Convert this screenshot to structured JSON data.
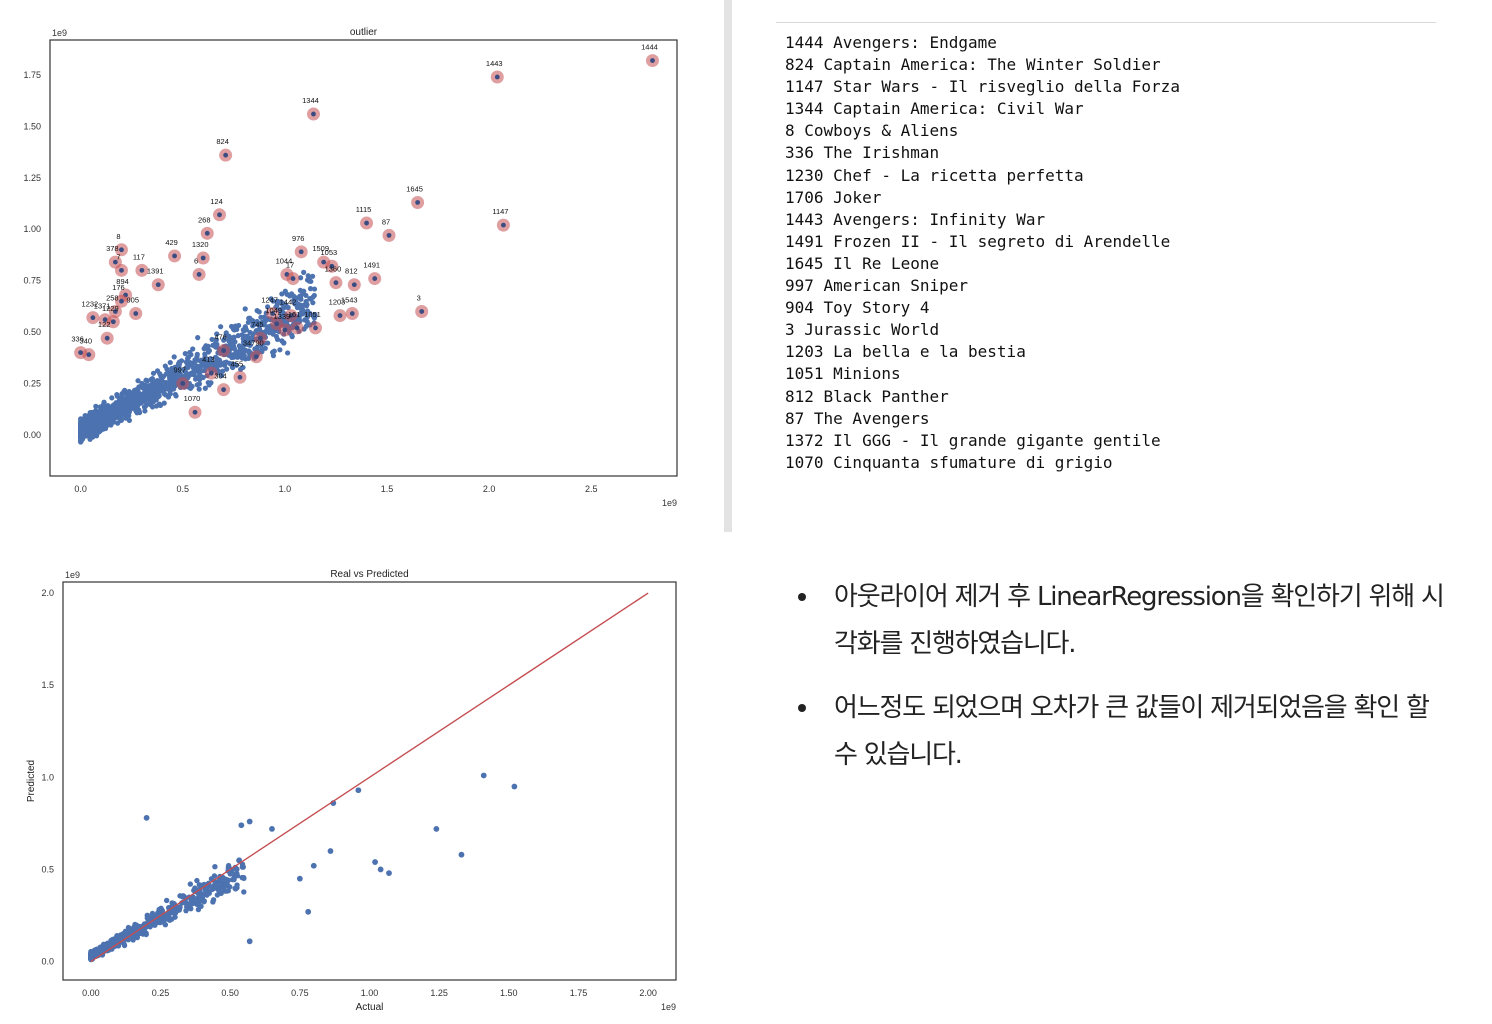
{
  "chart_data": [
    {
      "type": "scatter",
      "title": "outlier",
      "x_offset_label": "1e9",
      "y_offset_label": "1e9",
      "xlim": [
        -0.15,
        2.92
      ],
      "ylim": [
        -0.2,
        1.92
      ],
      "xticks": [
        "0.0",
        "0.5",
        "1.0",
        "1.5",
        "2.0",
        "2.5"
      ],
      "yticks": [
        "0.00",
        "0.25",
        "0.50",
        "0.75",
        "1.00",
        "1.25",
        "1.50",
        "1.75"
      ],
      "grid": false,
      "colors": {
        "point": "#4c72b0",
        "outlier": "#c44e52"
      },
      "outliers": [
        {
          "label": "1444",
          "x": 2.8,
          "y": 1.82
        },
        {
          "label": "1443",
          "x": 2.04,
          "y": 1.74
        },
        {
          "label": "1344",
          "x": 1.14,
          "y": 1.56
        },
        {
          "label": "824",
          "x": 0.71,
          "y": 1.36
        },
        {
          "label": "1645",
          "x": 1.65,
          "y": 1.13
        },
        {
          "label": "1147",
          "x": 2.07,
          "y": 1.02
        },
        {
          "label": "124",
          "x": 0.68,
          "y": 1.07
        },
        {
          "label": "1115",
          "x": 1.4,
          "y": 1.03
        },
        {
          "label": "87",
          "x": 1.51,
          "y": 0.97
        },
        {
          "label": "268",
          "x": 0.62,
          "y": 0.98
        },
        {
          "label": "8",
          "x": 0.2,
          "y": 0.9
        },
        {
          "label": "429",
          "x": 0.46,
          "y": 0.87
        },
        {
          "label": "1320",
          "x": 0.6,
          "y": 0.86
        },
        {
          "label": "976",
          "x": 1.08,
          "y": 0.89
        },
        {
          "label": "1509",
          "x": 1.19,
          "y": 0.84
        },
        {
          "label": "1053",
          "x": 1.23,
          "y": 0.82
        },
        {
          "label": "6",
          "x": 0.58,
          "y": 0.78
        },
        {
          "label": "378",
          "x": 0.17,
          "y": 0.84
        },
        {
          "label": "7",
          "x": 0.2,
          "y": 0.8
        },
        {
          "label": "117",
          "x": 0.3,
          "y": 0.8
        },
        {
          "label": "1391",
          "x": 0.38,
          "y": 0.73
        },
        {
          "label": "1491",
          "x": 1.44,
          "y": 0.76
        },
        {
          "label": "1360",
          "x": 1.25,
          "y": 0.74
        },
        {
          "label": "812",
          "x": 1.34,
          "y": 0.73
        },
        {
          "label": "1044",
          "x": 1.01,
          "y": 0.78
        },
        {
          "label": "17",
          "x": 1.04,
          "y": 0.76
        },
        {
          "label": "894",
          "x": 0.22,
          "y": 0.68
        },
        {
          "label": "176",
          "x": 0.2,
          "y": 0.65
        },
        {
          "label": "3",
          "x": 1.67,
          "y": 0.6
        },
        {
          "label": "1203",
          "x": 1.27,
          "y": 0.58
        },
        {
          "label": "1543",
          "x": 1.33,
          "y": 0.59
        },
        {
          "label": "258",
          "x": 0.17,
          "y": 0.6
        },
        {
          "label": "905",
          "x": 0.27,
          "y": 0.59
        },
        {
          "label": "1247",
          "x": 0.94,
          "y": 0.59
        },
        {
          "label": "1442",
          "x": 1.03,
          "y": 0.58
        },
        {
          "label": "1232",
          "x": 0.06,
          "y": 0.57
        },
        {
          "label": "1371",
          "x": 0.12,
          "y": 0.56
        },
        {
          "label": "1229",
          "x": 0.16,
          "y": 0.55
        },
        {
          "label": "1049",
          "x": 0.96,
          "y": 0.54
        },
        {
          "label": "1339",
          "x": 1.0,
          "y": 0.51
        },
        {
          "label": "161",
          "x": 1.06,
          "y": 0.52
        },
        {
          "label": "1051",
          "x": 1.15,
          "y": 0.52
        },
        {
          "label": "745",
          "x": 0.88,
          "y": 0.47
        },
        {
          "label": "997",
          "x": 0.5,
          "y": 0.25
        },
        {
          "label": "1070",
          "x": 0.56,
          "y": 0.11
        },
        {
          "label": "336",
          "x": 0.0,
          "y": 0.4
        },
        {
          "label": "340",
          "x": 0.04,
          "y": 0.39
        },
        {
          "label": "122",
          "x": 0.13,
          "y": 0.47
        },
        {
          "label": "476",
          "x": 0.7,
          "y": 0.41
        },
        {
          "label": "34790",
          "x": 0.86,
          "y": 0.38
        },
        {
          "label": "413",
          "x": 0.64,
          "y": 0.3
        },
        {
          "label": "455",
          "x": 0.78,
          "y": 0.28
        },
        {
          "label": "304",
          "x": 0.7,
          "y": 0.22
        }
      ]
    },
    {
      "type": "scatter",
      "title": "Real vs Predicted",
      "xlabel": "Actual",
      "ylabel": "Predicted",
      "x_offset_label": "1e9",
      "y_offset_label": "1e9",
      "xlim": [
        -0.1,
        2.1
      ],
      "ylim": [
        -0.1,
        2.06
      ],
      "xticks": [
        "0.00",
        "0.25",
        "0.50",
        "0.75",
        "1.00",
        "1.25",
        "1.50",
        "1.75",
        "2.00"
      ],
      "yticks": [
        "0.0",
        "0.5",
        "1.0",
        "1.5",
        "2.0"
      ],
      "grid": false,
      "colors": {
        "point": "#4c72b0",
        "line": "#c44e52"
      },
      "reference_line": {
        "x": [
          0,
          2.0
        ],
        "y": [
          0,
          2.0
        ]
      },
      "highlight_points": [
        {
          "x": 1.41,
          "y": 1.01
        },
        {
          "x": 1.52,
          "y": 0.95
        },
        {
          "x": 0.96,
          "y": 0.93
        },
        {
          "x": 0.87,
          "y": 0.86
        },
        {
          "x": 1.24,
          "y": 0.72
        },
        {
          "x": 1.33,
          "y": 0.58
        },
        {
          "x": 1.02,
          "y": 0.54
        },
        {
          "x": 1.04,
          "y": 0.5
        },
        {
          "x": 1.07,
          "y": 0.48
        },
        {
          "x": 0.86,
          "y": 0.6
        },
        {
          "x": 0.78,
          "y": 0.27
        },
        {
          "x": 0.57,
          "y": 0.76
        },
        {
          "x": 0.54,
          "y": 0.74
        },
        {
          "x": 0.65,
          "y": 0.72
        },
        {
          "x": 0.2,
          "y": 0.78
        },
        {
          "x": 0.57,
          "y": 0.11
        },
        {
          "x": 0.8,
          "y": 0.52
        },
        {
          "x": 0.75,
          "y": 0.45
        }
      ]
    }
  ],
  "outlier_list": [
    "1444 Avengers: Endgame",
    "824 Captain America: The Winter Soldier",
    "1147 Star Wars - Il risveglio della Forza",
    "1344 Captain America: Civil War",
    "8 Cowboys & Aliens",
    "336 The Irishman",
    "1230 Chef - La ricetta perfetta",
    "1706 Joker",
    "1443 Avengers: Infinity War",
    "1491 Frozen II - Il segreto di Arendelle",
    "1645 Il Re Leone",
    "997 American Sniper",
    "904 Toy Story 4",
    "3 Jurassic World",
    "1203 La bella e la bestia",
    "1051 Minions",
    "812 Black Panther",
    "87 The Avengers",
    "1372 Il GGG - Il grande gigante gentile",
    "1070 Cinquanta sfumature di grigio"
  ],
  "notes": [
    "아웃라이어 제거 후 LinearRegression을 확인하기 위해 시각화를 진행하였습니다.",
    "어느정도 되었으며 오차가 큰 값들이 제거되었음을 확인 할 수 있습니다."
  ]
}
